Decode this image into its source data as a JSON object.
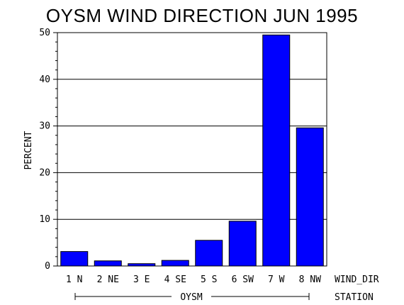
{
  "chart_data": {
    "type": "bar",
    "title": "OYSM WIND DIRECTION JUN 1995",
    "ylabel": "PERCENT",
    "xlabel": "WIND_DIR",
    "group_axis_label": "STATION",
    "group_label": "OYSM",
    "categories": [
      "1 N",
      "2 NE",
      "3 E",
      "4 SE",
      "5 S",
      "6 SW",
      "7 W",
      "8 NW"
    ],
    "values": [
      3.1,
      1.1,
      0.5,
      1.2,
      5.5,
      9.6,
      49.5,
      29.6
    ],
    "ylim": [
      0,
      50
    ],
    "yticks": [
      "0",
      "10",
      "20",
      "30",
      "40",
      "50"
    ],
    "grid": true,
    "bar_color": "#0000ff"
  }
}
